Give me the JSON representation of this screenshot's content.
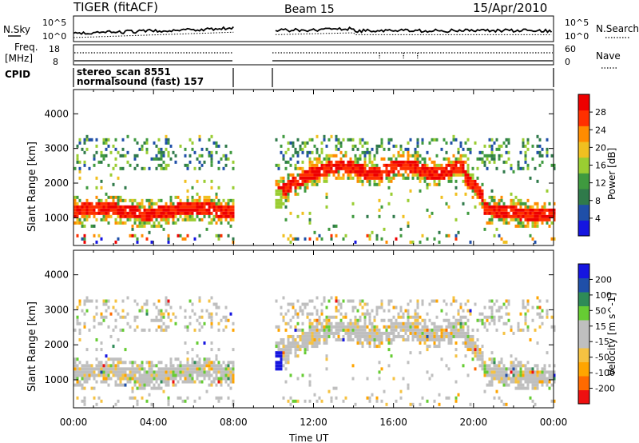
{
  "header": {
    "radar": "TIGER (fitACF)",
    "beam": "Beam 15",
    "date": "15/Apr/2010"
  },
  "top_panels": {
    "nsky_label": "N.Sky",
    "nsearch_label": "N.Search",
    "freq_label_1": "Freq.",
    "freq_label_2": "[MHz]",
    "nave_label": "Nave",
    "cpid_label": "CPID",
    "cpid_line1": "stereo_scan 8551",
    "cpid_line2": "normalsound (fast) 157",
    "nsky_ticks": [
      "10^5",
      "10^0"
    ],
    "freq_ticks": [
      "18",
      "8"
    ],
    "nave_ticks": [
      "60",
      "0"
    ]
  },
  "colors": {
    "power_scale": [
      "#1515e0",
      "#1f4fa8",
      "#2f7a4a",
      "#3f9a3f",
      "#9acd32",
      "#f0c020",
      "#ff8c00",
      "#ff3000",
      "#ee0000"
    ],
    "velocity_scale": [
      "#ee1010",
      "#ff6a00",
      "#ffa500",
      "#f5c242",
      "#bfbfbf",
      "#bfbfbf",
      "#66cc33",
      "#2e8b57",
      "#1f4fa8",
      "#1515e0"
    ]
  },
  "chart_data": [
    {
      "type": "heatmap",
      "title": "Power",
      "ylabel": "Slant Range [km]",
      "xlabel": "",
      "ylim": [
        200,
        4700
      ],
      "y_ticks": [
        "4000",
        "3000",
        "2000",
        "1000"
      ],
      "colorbar_label": "Power [dB]",
      "colorbar_ticks": [
        "28",
        "24",
        "20",
        "16",
        "12",
        "8",
        "4"
      ],
      "data_gap_hours": [
        8.0,
        10.0
      ],
      "echo_bands": [
        {
          "start_hour": 0.0,
          "end_hour": 8.0,
          "center_km": 1150,
          "power_db": 30
        },
        {
          "start_hour": 10.0,
          "end_hour": 15.5,
          "center_km": 2350,
          "power_db": 28
        },
        {
          "start_hour": 20.0,
          "end_hour": 24.0,
          "center_km": 1100,
          "power_db": 30
        }
      ]
    },
    {
      "type": "heatmap",
      "title": "Velocity",
      "ylabel": "Slant Range [km]",
      "xlabel": "Time UT",
      "ylim": [
        200,
        4700
      ],
      "y_ticks": [
        "4000",
        "3000",
        "2000",
        "1000"
      ],
      "x_ticks": [
        "00:00",
        "04:00",
        "08:00",
        "12:00",
        "16:00",
        "20:00",
        "00:00"
      ],
      "colorbar_label": "Velocity [m s^-1]",
      "colorbar_ticks": [
        "200",
        "100",
        "50",
        "15",
        "-15",
        "-50",
        "-100",
        "-200"
      ],
      "data_gap_hours": [
        8.0,
        10.0
      ]
    }
  ]
}
